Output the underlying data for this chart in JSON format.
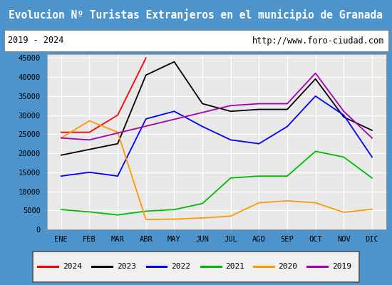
{
  "title": "Evolucion Nº Turistas Extranjeros en el municipio de Granada",
  "subtitle_left": "2019 - 2024",
  "subtitle_right": "http://www.foro-ciudad.com",
  "months": [
    "ENE",
    "FEB",
    "MAR",
    "ABR",
    "MAY",
    "JUN",
    "JUL",
    "AGO",
    "SEP",
    "OCT",
    "NOV",
    "DIC"
  ],
  "series": {
    "2024": [
      25500,
      25500,
      30000,
      45000,
      null,
      null,
      null,
      null,
      null,
      null,
      null,
      null
    ],
    "2023": [
      19500,
      21000,
      22500,
      40500,
      44000,
      33000,
      31000,
      31500,
      31500,
      39500,
      29500,
      26000
    ],
    "2022": [
      14000,
      15000,
      14000,
      29000,
      31000,
      27000,
      23500,
      22500,
      27000,
      35000,
      30000,
      19000
    ],
    "2021": [
      5200,
      4600,
      3800,
      4800,
      5200,
      6800,
      13500,
      14000,
      14000,
      20500,
      19000,
      13500
    ],
    "2020": [
      24000,
      28500,
      25500,
      2600,
      2700,
      3000,
      3500,
      7000,
      7500,
      7000,
      4500,
      5300
    ],
    "2019": [
      24000,
      23500,
      null,
      null,
      null,
      null,
      32500,
      33000,
      33000,
      41000,
      31000,
      24000
    ]
  },
  "colors": {
    "2024": "#ff0000",
    "2023": "#000000",
    "2022": "#0000ff",
    "2021": "#00bb00",
    "2020": "#ff9900",
    "2019": "#aa00aa"
  },
  "ylim": [
    0,
    46000
  ],
  "yticks": [
    0,
    5000,
    10000,
    15000,
    20000,
    25000,
    30000,
    35000,
    40000,
    45000
  ],
  "title_bg_color": "#4d94cc",
  "title_text_color": "#ffffff",
  "subtitle_bg_color": "#ffffff",
  "plot_bg_color": "#e8e8e8",
  "grid_color": "#ffffff",
  "fig_bg_color": "#4d94cc",
  "legend_bg_color": "#f0f0f0"
}
